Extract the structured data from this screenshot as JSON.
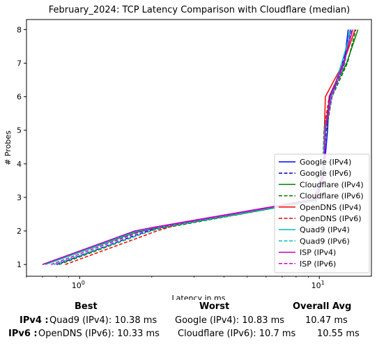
{
  "chart_data": {
    "type": "line",
    "title": "February_2024: TCP Latency Comparison with Cloudflare (median)",
    "xlabel": "Latency in ms",
    "ylabel": "# Probes",
    "xscale": "log",
    "xlim": [
      0.6,
      16.5
    ],
    "ylim": [
      0.65,
      8.3
    ],
    "x_ticks": [
      {
        "value": 1,
        "label": "10^0"
      },
      {
        "value": 10,
        "label": "10^1"
      }
    ],
    "y_ticks": [
      1,
      2,
      3,
      4,
      5,
      6,
      7,
      8
    ],
    "legend_position": "lower right",
    "series": [
      {
        "name": "Google (IPv4)",
        "color": "#0000ff",
        "dash": "solid",
        "x": [
          0.7,
          1.7,
          2.1,
          9.5,
          10.4,
          10.83,
          11.0,
          12.7,
          13.2
        ],
        "y": [
          1,
          2,
          2.1,
          2.9,
          3.6,
          5,
          6,
          7,
          8
        ]
      },
      {
        "name": "Google (IPv6)",
        "color": "#0000cc",
        "dash": "dashed",
        "x": [
          0.8,
          1.75,
          2.15,
          9.6,
          10.3,
          10.6,
          11.2,
          12.5,
          13.5
        ],
        "y": [
          1,
          1.9,
          2.1,
          2.9,
          3.7,
          5,
          6,
          7,
          8
        ]
      },
      {
        "name": "Cloudflare (IPv4)",
        "color": "#008000",
        "dash": "solid",
        "x": [
          0.72,
          1.7,
          2.0,
          9.7,
          10.45,
          10.5,
          11.1,
          13.0,
          14.5
        ],
        "y": [
          1,
          1.95,
          2.05,
          2.9,
          3.7,
          5,
          6,
          7,
          8
        ]
      },
      {
        "name": "Cloudflare (IPv6)",
        "color": "#007000",
        "dash": "dashed",
        "x": [
          0.82,
          1.8,
          2.1,
          9.5,
          10.35,
          10.7,
          11.3,
          13.1,
          14.2
        ],
        "y": [
          1,
          1.9,
          2.05,
          2.9,
          3.8,
          5,
          6,
          7,
          8
        ]
      },
      {
        "name": "OpenDNS (IPv4)",
        "color": "#ff0000",
        "dash": "solid",
        "x": [
          0.7,
          1.72,
          2.05,
          9.4,
          10.4,
          10.5,
          10.6,
          12.6,
          14.1
        ],
        "y": [
          1,
          2,
          2.1,
          2.9,
          3.6,
          5,
          6,
          7,
          8
        ]
      },
      {
        "name": "OpenDNS (IPv6)",
        "color": "#ee0000",
        "dash": "dashed",
        "x": [
          0.87,
          2.1,
          2.6,
          9.4,
          10.33,
          10.45,
          11.0,
          12.7,
          13.6
        ],
        "y": [
          1,
          2,
          2.2,
          2.95,
          3.6,
          5,
          6,
          7,
          8
        ]
      },
      {
        "name": "Quad9 (IPv4)",
        "color": "#00c0c0",
        "dash": "solid",
        "x": [
          0.72,
          1.75,
          2.1,
          9.6,
          10.38,
          10.5,
          11.2,
          12.4,
          13.6
        ],
        "y": [
          1,
          2,
          2.1,
          2.9,
          3.8,
          5,
          6,
          7,
          8
        ]
      },
      {
        "name": "Quad9 (IPv6)",
        "color": "#00bbbb",
        "dash": "dashed",
        "x": [
          0.78,
          1.8,
          2.2,
          9.5,
          10.4,
          10.55,
          11.3,
          12.8,
          13.4
        ],
        "y": [
          1,
          1.9,
          2.1,
          2.9,
          3.7,
          5,
          6,
          7,
          8
        ]
      },
      {
        "name": "ISP (IPv4)",
        "color": "#bf00bf",
        "dash": "solid",
        "x": [
          0.7,
          1.7,
          2.0,
          9.7,
          10.45,
          10.6,
          11.1,
          12.6,
          13.8
        ],
        "y": [
          1,
          2,
          2.1,
          2.95,
          3.8,
          5,
          6,
          7,
          8
        ]
      },
      {
        "name": "ISP (IPv6)",
        "color": "#cc00cc",
        "dash": "dashed",
        "x": [
          0.76,
          1.75,
          2.1,
          9.8,
          10.5,
          10.6,
          11.3,
          12.7,
          13.7
        ],
        "y": [
          1,
          1.95,
          2.1,
          2.95,
          3.75,
          5,
          6,
          7,
          8
        ]
      }
    ]
  },
  "stats": {
    "headers": {
      "best": "Best",
      "worst": "Worst",
      "avg": "Overall Avg"
    },
    "rows": [
      {
        "label": "IPv4 :",
        "best": "Quad9 (IPv4): 10.38 ms",
        "worst": "Google (IPv4): 10.83 ms",
        "avg": "10.47 ms"
      },
      {
        "label": "IPv6 :",
        "best": "OpenDNS (IPv6): 10.33 ms",
        "worst": "Cloudflare (IPv6): 10.7 ms",
        "avg": "10.55 ms"
      }
    ]
  }
}
